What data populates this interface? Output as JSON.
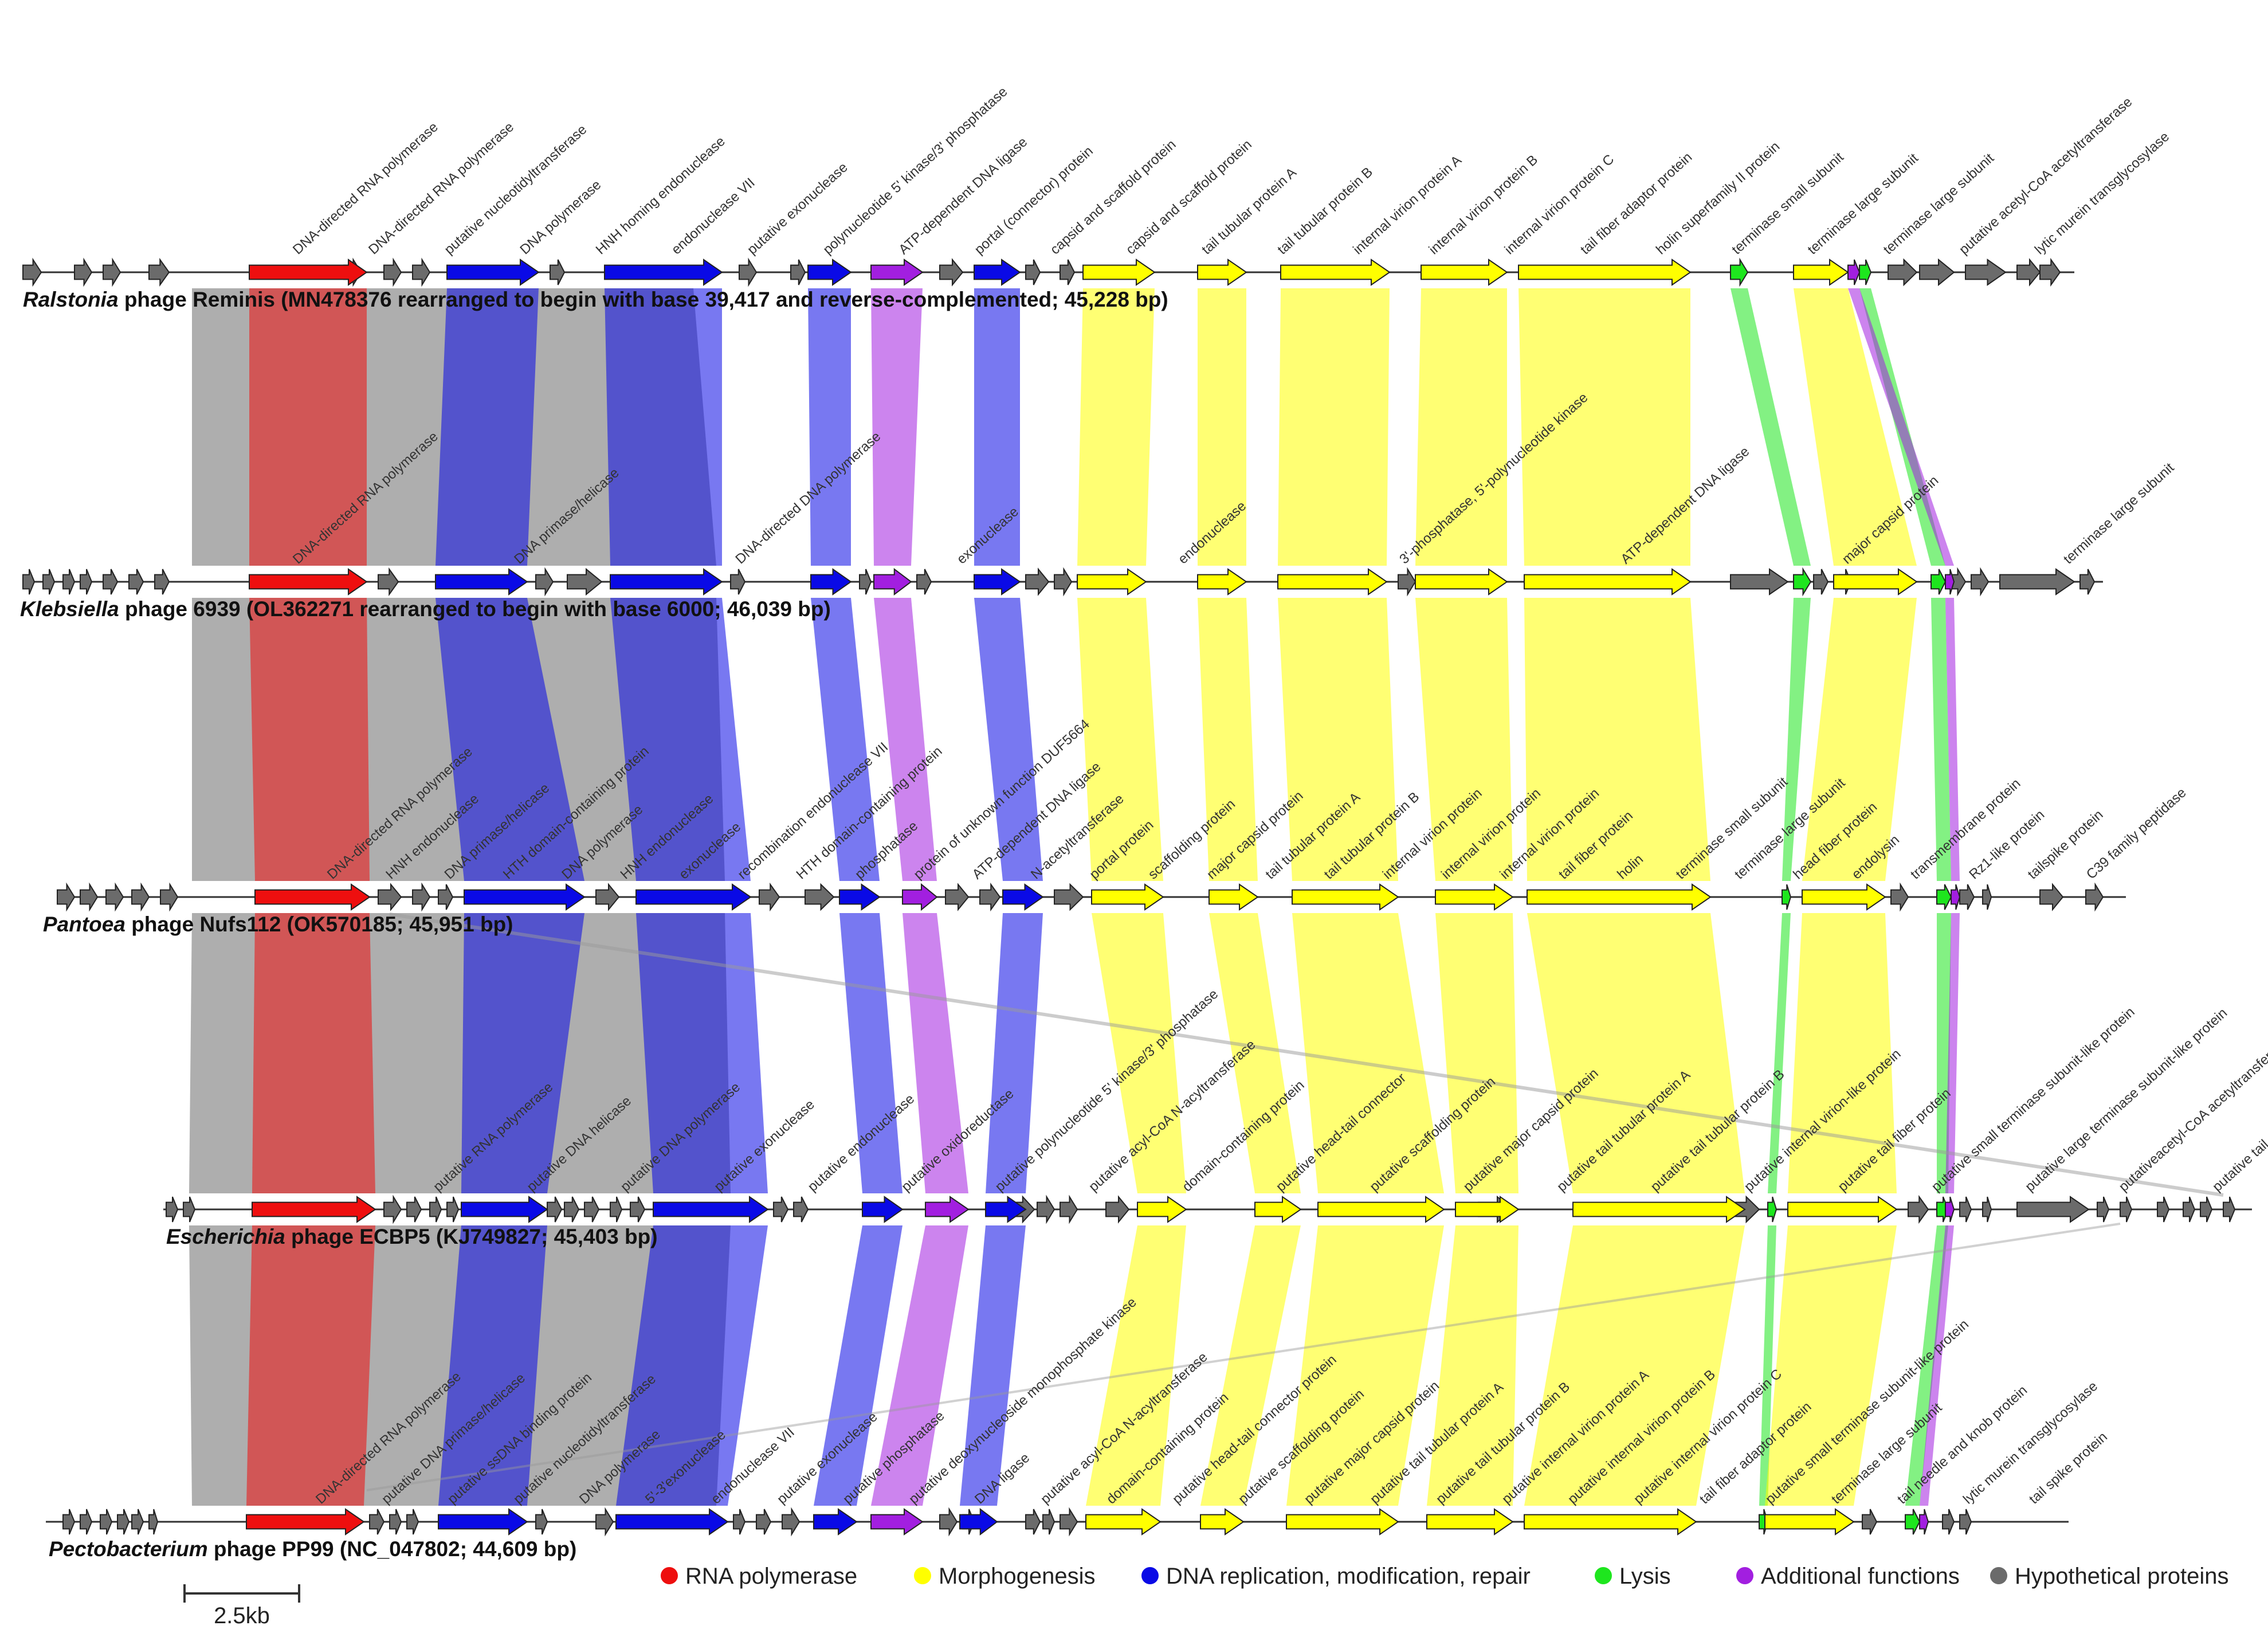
{
  "colors": {
    "rna": "#ee0f0f",
    "morph": "#ffff00",
    "dna": "#0a0ae6",
    "lysis": "#1ee61e",
    "add": "#a21fe0",
    "hyp": "#6b6b6b"
  },
  "legend": [
    {
      "cat": "rna",
      "label": "RNA polymerase"
    },
    {
      "cat": "morph",
      "label": "Morphogenesis"
    },
    {
      "cat": "dna",
      "label": "DNA replication, modification, repair"
    },
    {
      "cat": "lysis",
      "label": "Lysis"
    },
    {
      "cat": "add",
      "label": "Additional functions"
    },
    {
      "cat": "hyp",
      "label": "Hypothetical proteins"
    }
  ],
  "scale_bar": {
    "label": "2.5kb"
  },
  "genomes": [
    {
      "genus": "Ralstonia",
      "rest": " phage Reminis (MN478376 rearranged to begin with base 39,417 and reverse-complemented; 45,228 bp)",
      "labels": [
        "DNA-directed RNA polymerase",
        "DNA-directed RNA polymerase",
        "putative nucleotidyltransferase",
        "DNA polymerase",
        "HNH homing endonuclease",
        "endonuclease VII",
        "putative exonuclease",
        "polynucleotide 5' kinase/3' phosphatase",
        "ATP-dependent DNA ligase",
        "portal (connector) protein",
        "capsid and scaffold protein",
        "capsid and scaffold protein",
        "tail tubular protein A",
        "tail tubular protein B",
        "internal virion protein A",
        "internal virion protein B",
        "internal virion protein C",
        "tail fiber adaptor protein",
        "holin superfamily II protein",
        "terminase small subunit",
        "terminase large subunit",
        "terminase large subunit",
        "putative acetyl-CoA acetyltransferase",
        "lytic murein transglycosylase"
      ]
    },
    {
      "genus": "Klebsiella",
      "rest": " phage 6939 (OL362271 rearranged to begin with base 6000; 46,039 bp)",
      "labels": [
        "DNA-directed RNA polymerase",
        "DNA primase/helicase",
        "DNA-directed DNA polymerase",
        "exonuclease",
        "endonuclease",
        "3'-phosphatase, 5'-polynucleotide kinase",
        "ATP-dependent DNA ligase",
        "major capsid protein",
        "terminase large subunit"
      ]
    },
    {
      "genus": "Pantoea",
      "rest": " phage Nufs112 (OK570185; 45,951 bp)",
      "labels": [
        "DNA-directed RNA polymerase",
        "HNH endonuclease",
        "DNA primase/helicase",
        "HTH domain-containing protein",
        "DNA polymerase",
        "HNH endonuclease",
        "exonuclease",
        "recombination endonuclease VII",
        "HTH domain-containing protein",
        "phosphatase",
        "protein of unknown function DUF5664",
        "ATP-dependent DNA ligase",
        "N-acetyltransferase",
        "portal protein",
        "scaffolding protein",
        "major capsid protein",
        "tail tubular protein A",
        "tail tubular protein B",
        "internal virion protein",
        "internal virion protein",
        "internal virion protein",
        "tail fiber protein",
        "holin",
        "terminase small subunit",
        "terminase large subunit",
        "head fiber protein",
        "endolysin",
        "transmembrane protein",
        "Rz1-like protein",
        "tailspike protein",
        "C39 family peptidase"
      ]
    },
    {
      "genus": "Escherichia",
      "rest": " phage ECBP5 (KJ749827; 45,403 bp)",
      "labels": [
        "putative RNA polymerase",
        "putative DNA helicase",
        "putative DNA polymerase",
        "putative exonuclease",
        "putative endonuclease",
        "putative oxidoreductase",
        "putative polynucleotide 5' kinase/3' phosphatase",
        "putative acyl-CoA N-acyltransferase",
        "domain-containing protein",
        "putative head-tail connector",
        "putative scaffolding protein",
        "putative major capsid protein",
        "putative tail tubular protein A",
        "putative tail tubular protein B",
        "putative internal virion-like protein",
        "putative tail fiber protein",
        "putative small terminase subunit-like protein",
        "putative large terminase subunit-like protein",
        "putativeacetyl-CoA acetyltransferase",
        "putative tail spike protein"
      ]
    },
    {
      "genus": "Pectobacterium",
      "rest": " phage PP99 (NC_047802; 44,609 bp)",
      "labels": [
        "DNA-directed RNA polymerase",
        "putative DNA primase/helicase",
        "putative ssDNA binding protein",
        "putative nucleotidyltransferase",
        "DNA polymerase",
        "5'-3'exonuclease",
        "endonuclease VII",
        "putative exonuclease",
        "putative phosphatase",
        "putative deoxynucleoside monophosphate kinase",
        "DNA ligase",
        "putative acyl-CoA N-acyltransferase",
        "domain-containing protein",
        "putative head-tail connector protein",
        "putative scaffolding protein",
        "putative major capsid protein",
        "putative tail tubular protein A",
        "putative tail tubular protein B",
        "putative internal virion protein A",
        "putative internal virion protein B",
        "putative internal virion protein C",
        "tail fiber adaptor protein",
        "putative small terminase subunit-like protein",
        "terminase large subunit",
        "tail needle and knob protein",
        "lytic murein transglycosylase",
        "tail spike protein"
      ]
    }
  ]
}
